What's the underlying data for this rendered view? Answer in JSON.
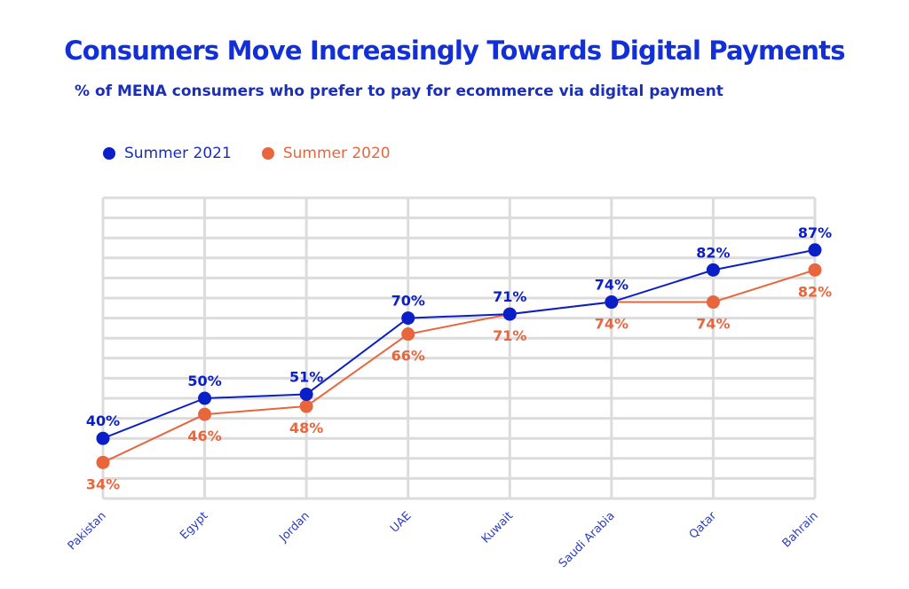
{
  "title": "Consumers Move Increasingly Towards Digital Payments",
  "subtitle": "% of MENA consumers who prefer to pay for ecommerce via digital payment",
  "colors": {
    "title": "#1230d6",
    "summer_2021": "#0a1fc8",
    "summer_2020": "#e8663c",
    "grid": "#dcdcdc",
    "tick_label": "#2a3dc0"
  },
  "chart_data": {
    "type": "line",
    "title": "Consumers Move Increasingly Towards Digital Payments",
    "subtitle": "% of MENA consumers who prefer to pay for ecommerce via digital payment",
    "xlabel": "",
    "ylabel": "",
    "categories": [
      "Pakistan",
      "Egypt",
      "Jordan",
      "UAE",
      "Kuwait",
      "Saudi Arabia",
      "Qatar",
      "Bahrain"
    ],
    "series": [
      {
        "name": "Summer 2021",
        "color": "#0a1fc8",
        "values": [
          40,
          50,
          51,
          70,
          71,
          74,
          82,
          87
        ],
        "labels": [
          "40%",
          "50%",
          "51%",
          "70%",
          "71%",
          "74%",
          "82%",
          "87%"
        ],
        "label_position": "above"
      },
      {
        "name": "Summer 2020",
        "color": "#e8663c",
        "values": [
          34,
          46,
          48,
          66,
          71,
          74,
          74,
          82
        ],
        "labels": [
          "34%",
          "46%",
          "48%",
          "66%",
          "71%",
          "74%",
          "74%",
          "82%"
        ],
        "label_position": "below"
      }
    ],
    "ylim": [
      25,
      100
    ],
    "y_grid_step": 5,
    "grid": true,
    "y_tick_labels_shown": false,
    "x_tick_rotation": -45,
    "legend": "top-left"
  }
}
